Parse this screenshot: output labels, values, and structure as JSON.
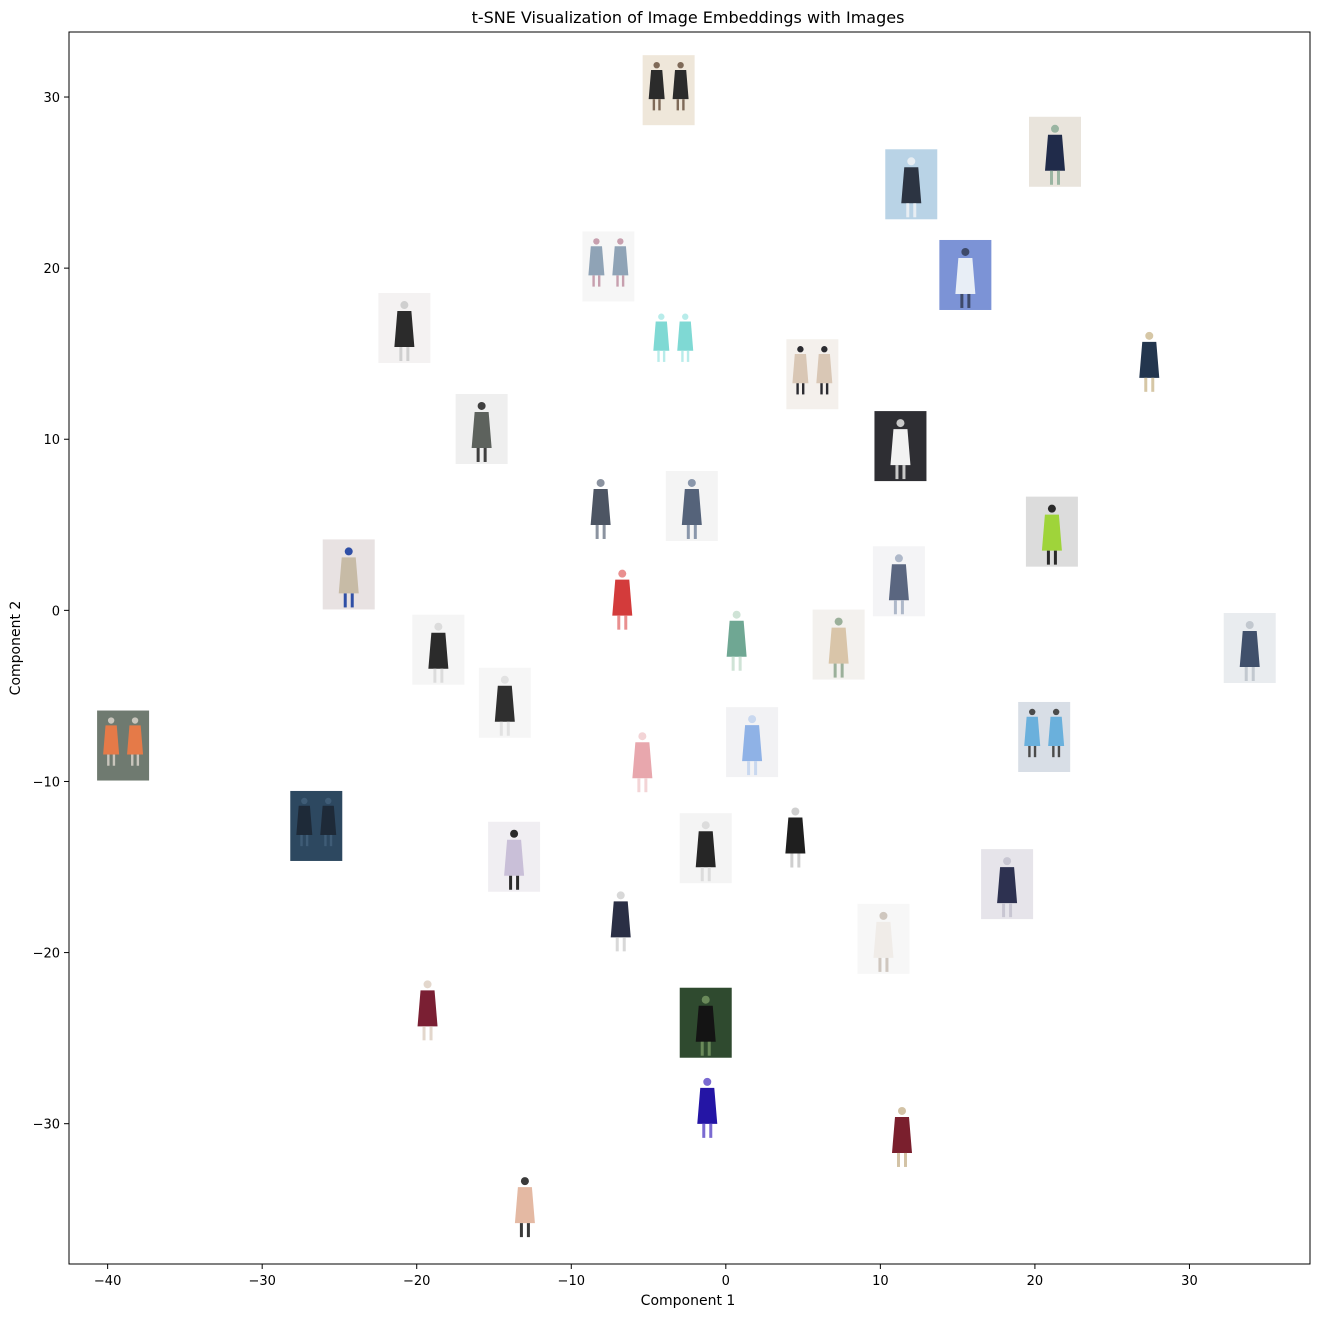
{
  "chart_data": {
    "type": "scatter",
    "title": "t-SNE Visualization of Image Embeddings with Images",
    "xlabel": "Component 1",
    "ylabel": "Component 2",
    "xlim": [
      -42.5,
      37.8
    ],
    "ylim": [
      -38.2,
      33.8
    ],
    "xticks": [
      -40,
      -30,
      -20,
      -10,
      0,
      10,
      20,
      30
    ],
    "yticks": [
      -30,
      -20,
      -10,
      0,
      10,
      20,
      30
    ],
    "grid": false,
    "points": [
      {
        "x": -3.7,
        "y": 30.4,
        "thumb": "two-women-cream-top-dark-skirt",
        "palette": [
          "#efe7da",
          "#2b2b2b",
          "#7f6a58"
        ],
        "pair": true
      },
      {
        "x": 12.0,
        "y": 24.9,
        "thumb": "woman-light-blue-kimono",
        "palette": [
          "#b9d3e6",
          "#2c3442",
          "#e8eef3"
        ],
        "pair": false
      },
      {
        "x": 21.3,
        "y": 26.8,
        "thumb": "woman-hat-seaside",
        "palette": [
          "#e9e4dc",
          "#202b4a",
          "#9ab5a2"
        ],
        "pair": false
      },
      {
        "x": -7.6,
        "y": 20.1,
        "thumb": "two-floral-maxi-dresses",
        "palette": [
          "#f6f6f6",
          "#8fa3b6",
          "#c79fae"
        ],
        "pair": true
      },
      {
        "x": 15.5,
        "y": 19.6,
        "thumb": "woman-blue-hair-shorts",
        "palette": [
          "#7c93d6",
          "#e8eef6",
          "#3e4a6a"
        ],
        "pair": false
      },
      {
        "x": -20.8,
        "y": 16.5,
        "thumb": "woman-plaid-shirt",
        "palette": [
          "#f4f2f2",
          "#2b2b2b",
          "#cfcfcf"
        ],
        "pair": false
      },
      {
        "x": -3.4,
        "y": 15.7,
        "thumb": "two-aqua-maxi-dresses",
        "palette": [
          "#ffffff",
          "#7fd9d4",
          "#b8ecea"
        ],
        "pair": true
      },
      {
        "x": 5.6,
        "y": 13.8,
        "thumb": "two-women-white-tank",
        "palette": [
          "#f4f0ec",
          "#d9c7b5",
          "#2b2b30"
        ],
        "pair": true
      },
      {
        "x": 27.4,
        "y": 14.7,
        "thumb": "man-navy-sweater",
        "palette": [
          "#ffffff",
          "#23364e",
          "#d6c7a6"
        ],
        "pair": false
      },
      {
        "x": -15.8,
        "y": 10.6,
        "thumb": "woman-grey-parka",
        "palette": [
          "#efefef",
          "#5d625d",
          "#3f3f3f"
        ],
        "pair": false
      },
      {
        "x": 11.3,
        "y": 9.6,
        "thumb": "woman-white-blouse-dark-bg",
        "palette": [
          "#2e2e33",
          "#f2f2f2",
          "#c9c9c9"
        ],
        "pair": false
      },
      {
        "x": -8.1,
        "y": 6.1,
        "thumb": "woman-slate-wrap-dress",
        "palette": [
          "#ffffff",
          "#4d5563",
          "#8b93a0"
        ],
        "pair": false
      },
      {
        "x": -2.2,
        "y": 6.1,
        "thumb": "woman-slate-maxi-dress",
        "palette": [
          "#f4f4f4",
          "#55637a",
          "#8a97ab"
        ],
        "pair": false
      },
      {
        "x": 21.1,
        "y": 4.6,
        "thumb": "woman-lime-sweater",
        "palette": [
          "#dcdcdc",
          "#9fd43a",
          "#2a2a2a"
        ],
        "pair": false
      },
      {
        "x": -24.4,
        "y": 2.1,
        "thumb": "woman-beige-coat-blue-jeans",
        "palette": [
          "#e8e2e2",
          "#c7bba6",
          "#2f4fa6"
        ],
        "pair": false
      },
      {
        "x": -6.7,
        "y": 0.8,
        "thumb": "woman-red-floral-dress",
        "palette": [
          "#ffffff",
          "#d33b3b",
          "#e98f8f"
        ],
        "pair": false
      },
      {
        "x": 11.2,
        "y": 1.7,
        "thumb": "woman-printed-kimono",
        "palette": [
          "#f4f4f6",
          "#5a6680",
          "#aeb8c9"
        ],
        "pair": false
      },
      {
        "x": 0.7,
        "y": -1.6,
        "thumb": "woman-green-print-dress",
        "palette": [
          "#ffffff",
          "#6fa793",
          "#cfe3d6"
        ],
        "pair": false
      },
      {
        "x": 7.3,
        "y": -2.0,
        "thumb": "woman-cream-kimono",
        "palette": [
          "#f3f1ee",
          "#d9c5a9",
          "#9bb09a"
        ],
        "pair": false
      },
      {
        "x": 33.9,
        "y": -2.2,
        "thumb": "woman-seated-porch",
        "palette": [
          "#e9ecef",
          "#40506b",
          "#c2c8cf"
        ],
        "pair": false
      },
      {
        "x": -18.6,
        "y": -2.3,
        "thumb": "woman-black-vest-white-pants",
        "palette": [
          "#f5f5f5",
          "#2b2b2b",
          "#dcdcdc"
        ],
        "pair": false
      },
      {
        "x": -14.3,
        "y": -5.4,
        "thumb": "woman-black-top-shorts",
        "palette": [
          "#f6f6f6",
          "#2f2f2f",
          "#e2e2e2"
        ],
        "pair": false
      },
      {
        "x": -39.0,
        "y": -7.9,
        "thumb": "orange-striped-sweater",
        "palette": [
          "#6f7a70",
          "#e57a48",
          "#c9c5bc"
        ],
        "pair": true
      },
      {
        "x": 1.7,
        "y": -7.7,
        "thumb": "woman-light-blue-dress",
        "palette": [
          "#f2f2f4",
          "#8fb2e6",
          "#c9d8ef"
        ],
        "pair": false
      },
      {
        "x": 20.6,
        "y": -7.4,
        "thumb": "two-women-aqua-tunic",
        "palette": [
          "#d8dee6",
          "#6ab0dc",
          "#4b4b4b"
        ],
        "pair": true
      },
      {
        "x": -5.4,
        "y": -8.7,
        "thumb": "woman-pink-floral-dress",
        "palette": [
          "#ffffff",
          "#e8a7ad",
          "#f3d4d6"
        ],
        "pair": false
      },
      {
        "x": -26.5,
        "y": -12.6,
        "thumb": "navy-dress-dark-backdrop",
        "palette": [
          "#2d4860",
          "#1e2a38",
          "#3f5c76"
        ],
        "pair": true
      },
      {
        "x": -13.7,
        "y": -14.4,
        "thumb": "woman-lilac-top-black-shorts",
        "palette": [
          "#f0eef2",
          "#c9bfd8",
          "#2b2b2b"
        ],
        "pair": false
      },
      {
        "x": -1.3,
        "y": -13.9,
        "thumb": "woman-black-tunic",
        "palette": [
          "#f4f4f4",
          "#262626",
          "#dcdcdc"
        ],
        "pair": false
      },
      {
        "x": 4.5,
        "y": -13.1,
        "thumb": "woman-black-off-shoulder-dress",
        "palette": [
          "#ffffff",
          "#1f1f1f",
          "#cfcfcf"
        ],
        "pair": false
      },
      {
        "x": 18.2,
        "y": -16.0,
        "thumb": "woman-navy-coat",
        "palette": [
          "#e6e4ea",
          "#2d3150",
          "#c8c6d2"
        ],
        "pair": false
      },
      {
        "x": -6.8,
        "y": -18.0,
        "thumb": "woman-navy-skater-dress",
        "palette": [
          "#ffffff",
          "#2a2f45",
          "#d8d8d8"
        ],
        "pair": false
      },
      {
        "x": 10.2,
        "y": -19.2,
        "thumb": "woman-white-mini-dress",
        "palette": [
          "#f7f7f7",
          "#f0ece8",
          "#cfc7bf"
        ],
        "pair": false
      },
      {
        "x": -19.3,
        "y": -23.2,
        "thumb": "burgundy-swing-coat",
        "palette": [
          "#ffffff",
          "#7a1f33",
          "#e3d7cc"
        ],
        "pair": false
      },
      {
        "x": -1.3,
        "y": -24.1,
        "thumb": "man-black-shirt-closeup",
        "palette": [
          "#2f4a2f",
          "#141414",
          "#6a8a5a"
        ],
        "pair": false
      },
      {
        "x": -1.2,
        "y": -28.9,
        "thumb": "woman-royal-blue-dress",
        "palette": [
          "#ffffff",
          "#2415a5",
          "#7a6ad1"
        ],
        "pair": false
      },
      {
        "x": 11.4,
        "y": -30.6,
        "thumb": "man-red-striped-sweater",
        "palette": [
          "#ffffff",
          "#7a1f2d",
          "#d3c3a6"
        ],
        "pair": false
      },
      {
        "x": -13.0,
        "y": -34.7,
        "thumb": "peach-cropped-sweater",
        "palette": [
          "#ffffff",
          "#e4b9a3",
          "#3a3a3a"
        ],
        "pair": false
      }
    ]
  }
}
